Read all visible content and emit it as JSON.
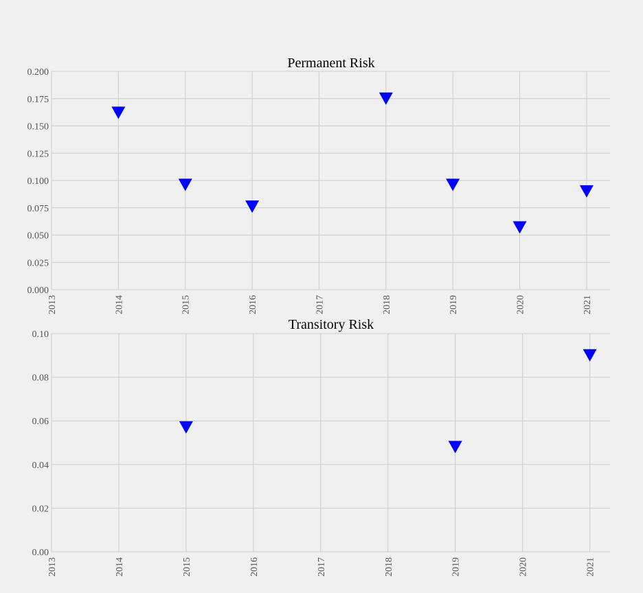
{
  "chart_data": [
    {
      "type": "scatter",
      "title": "Permanent Risk",
      "xlabel": "",
      "ylabel": "",
      "x_ticks": [
        "2013",
        "2014",
        "2015",
        "2016",
        "2017",
        "2018",
        "2019",
        "2020",
        "2021"
      ],
      "xlim": [
        2013,
        2021.35
      ],
      "y_ticks": [
        "0.000",
        "0.025",
        "0.050",
        "0.075",
        "0.100",
        "0.125",
        "0.150",
        "0.175",
        "0.200"
      ],
      "ylim": [
        0,
        0.2
      ],
      "grid": true,
      "marker": "triangle-down",
      "marker_color": "#0000ff",
      "points": [
        {
          "x": 2014,
          "y": 0.162
        },
        {
          "x": 2015,
          "y": 0.096
        },
        {
          "x": 2016,
          "y": 0.076
        },
        {
          "x": 2018,
          "y": 0.175
        },
        {
          "x": 2019,
          "y": 0.096
        },
        {
          "x": 2020,
          "y": 0.057
        },
        {
          "x": 2021,
          "y": 0.09
        }
      ]
    },
    {
      "type": "scatter",
      "title": "Transitory Risk",
      "xlabel": "",
      "ylabel": "",
      "x_ticks": [
        "2013",
        "2014",
        "2015",
        "2016",
        "2017",
        "2018",
        "2019",
        "2020",
        "2021"
      ],
      "xlim": [
        2013,
        2021.3
      ],
      "y_ticks": [
        "0.00",
        "0.02",
        "0.04",
        "0.06",
        "0.08",
        "0.10"
      ],
      "ylim": [
        0,
        0.1
      ],
      "grid": true,
      "marker": "triangle-down",
      "marker_color": "#0000ff",
      "points": [
        {
          "x": 2015,
          "y": 0.057
        },
        {
          "x": 2019,
          "y": 0.048
        },
        {
          "x": 2021,
          "y": 0.09
        }
      ]
    }
  ]
}
